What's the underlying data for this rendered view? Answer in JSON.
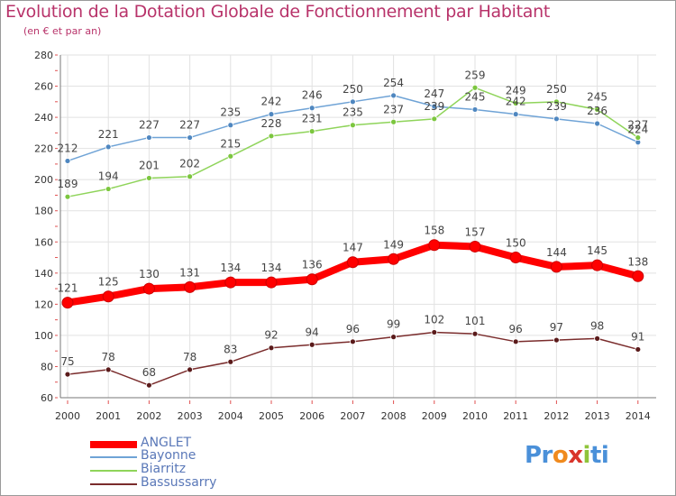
{
  "chart_data": {
    "type": "line",
    "title": "Evolution de la Dotation Globale de Fonctionnement par Habitant",
    "subtitle": "(en € et par an)",
    "x": [
      "2000",
      "2001",
      "2002",
      "2003",
      "2004",
      "2005",
      "2006",
      "2007",
      "2008",
      "2009",
      "2010",
      "2011",
      "2012",
      "2013",
      "2014"
    ],
    "ylim": [
      60,
      280
    ],
    "yticks": [
      60,
      80,
      100,
      120,
      140,
      160,
      180,
      200,
      220,
      240,
      260,
      280
    ],
    "grid": true,
    "legend_position": "bottom-left",
    "series": [
      {
        "name": "ANGLET",
        "color": "#ff0000",
        "values": [
          121,
          125,
          130,
          131,
          134,
          134,
          136,
          147,
          149,
          158,
          157,
          150,
          144,
          145,
          138
        ]
      },
      {
        "name": "Bayonne",
        "color": "#6fa3d6",
        "values": [
          212,
          221,
          227,
          227,
          235,
          242,
          246,
          250,
          254,
          247,
          245,
          242,
          239,
          236,
          224
        ]
      },
      {
        "name": "Biarritz",
        "color": "#8fd45a",
        "values": [
          189,
          194,
          201,
          202,
          215,
          228,
          231,
          235,
          237,
          239,
          259,
          249,
          250,
          245,
          227
        ]
      },
      {
        "name": "Bassussarry",
        "color": "#7a2c2c",
        "values": [
          75,
          78,
          68,
          78,
          83,
          92,
          94,
          96,
          99,
          102,
          101,
          96,
          97,
          98,
          91
        ]
      }
    ]
  },
  "logo": {
    "text_parts": [
      "Pr",
      "o",
      "x",
      "i",
      "ti"
    ],
    "colors": [
      "#4a90d9",
      "#f08a1e",
      "#d9342b",
      "#8fc43a",
      "#4a90d9"
    ]
  }
}
